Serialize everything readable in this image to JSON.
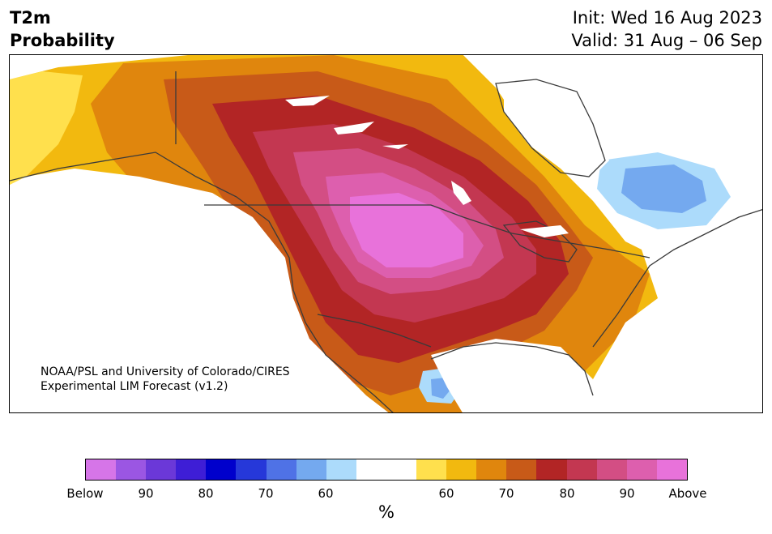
{
  "header": {
    "title_line1": "T2m",
    "title_line2": "Probability",
    "init": "Init: Wed 16 Aug 2023",
    "valid": "Valid: 31 Aug – 06 Sep"
  },
  "map": {
    "credit_line1": "NOAA/PSL and University of Colorado/CIRES",
    "credit_line2": "Experimental LIM Forecast (v1.2)"
  },
  "colorbar": {
    "colors": [
      "#d675e8",
      "#9b56e3",
      "#6b38d8",
      "#3e1ed6",
      "#0000cc",
      "#2638d9",
      "#4f72e6",
      "#74a9ef",
      "#acdbfb",
      "#ffffff",
      "#ffffff",
      "#ffe04d",
      "#f2b90f",
      "#e0860d",
      "#c85a18",
      "#b22525",
      "#c33751",
      "#d34e84",
      "#dd5fae",
      "#e872da"
    ],
    "tick_labels": [
      "Below",
      "90",
      "80",
      "70",
      "60",
      "60",
      "70",
      "80",
      "90",
      "Above"
    ],
    "unit": "%"
  }
}
